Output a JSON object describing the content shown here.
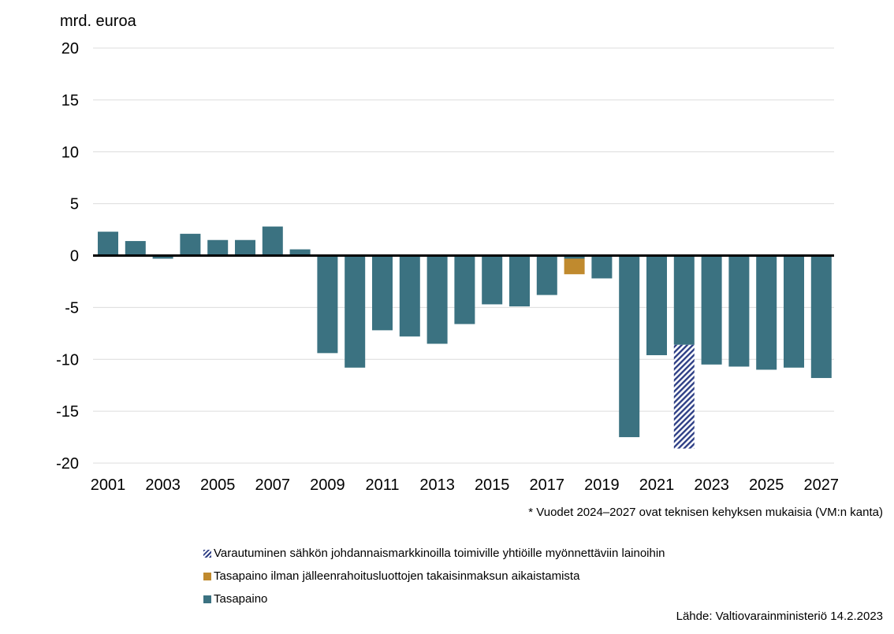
{
  "chart_data": {
    "type": "bar",
    "ylabel": "mrd. euroa",
    "ylim": [
      -20,
      20
    ],
    "yticks": [
      20,
      15,
      10,
      5,
      0,
      -5,
      -10,
      -15,
      -20
    ],
    "grid": true,
    "categories": [
      "2001",
      "2002",
      "2003",
      "2004",
      "2005",
      "2006",
      "2007",
      "2008",
      "2009",
      "2010",
      "2011",
      "2012",
      "2013",
      "2014",
      "2015",
      "2016",
      "2017",
      "2018",
      "2019",
      "2020",
      "2021",
      "2022",
      "2023",
      "2024",
      "2025",
      "2026",
      "2027"
    ],
    "xticklabels": [
      "2001",
      "2003",
      "2005",
      "2007",
      "2009",
      "2011",
      "2013",
      "2015",
      "2017",
      "2019",
      "2021",
      "2023",
      "2025",
      "2027"
    ],
    "series": [
      {
        "name": "Tasapaino",
        "color": "#3b7281",
        "values": [
          2.3,
          1.4,
          -0.3,
          2.1,
          1.5,
          1.5,
          2.8,
          0.6,
          -9.4,
          -10.8,
          -7.2,
          -7.8,
          -8.5,
          -6.6,
          -4.7,
          -4.9,
          -3.8,
          -0.3,
          -2.2,
          -17.5,
          -9.6,
          -8.6,
          -10.5,
          -10.7,
          -11.0,
          -10.8,
          -11.8
        ]
      },
      {
        "name": "Tasapaino ilman jälleenrahoitusluottojen takaisinmaksun aikaistamista",
        "color": "#c08a2e",
        "values": [
          0,
          0,
          0,
          0,
          0,
          0,
          0,
          0,
          0,
          0,
          0,
          0,
          0,
          0,
          0,
          0,
          0,
          -1.5,
          0,
          0,
          0,
          0,
          0,
          0,
          0,
          0,
          0
        ]
      },
      {
        "name": "Varautuminen sähkön johdannaismarkkinoilla toimiville yhtiöille myönnettäviin lainoihin",
        "color": "#2e3f86",
        "pattern": "hatch",
        "values": [
          0,
          0,
          0,
          0,
          0,
          0,
          0,
          0,
          0,
          0,
          0,
          0,
          0,
          0,
          0,
          0,
          0,
          0,
          0,
          0,
          0,
          -10.0,
          0,
          0,
          0,
          0,
          0
        ]
      }
    ],
    "legend_position": "bottom",
    "legend_order": [
      2,
      1,
      0
    ],
    "footnote": "* Vuodet 2024–2027 ovat teknisen kehyksen mukaisia (VM:n kanta)",
    "source": "Lähde: Valtiovarainministeriö 14.2.2023"
  }
}
